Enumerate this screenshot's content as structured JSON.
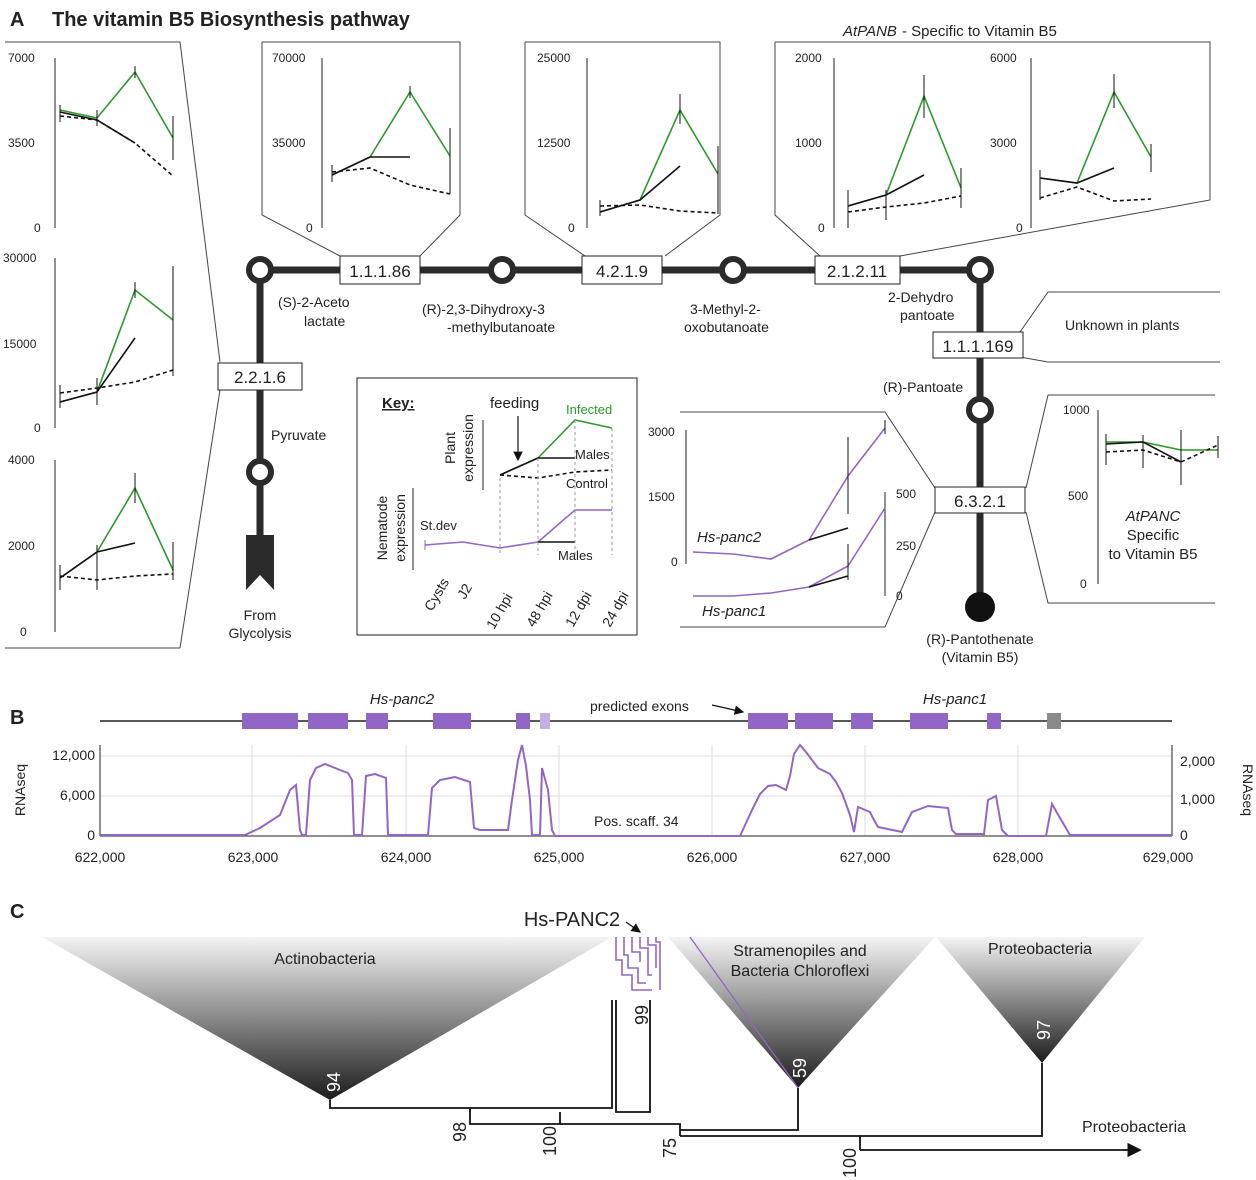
{
  "panels": {
    "a_letter": "A",
    "a_title": "The vitamin B5 Biosynthesis pathway",
    "b_letter": "B",
    "c_letter": "C"
  },
  "pathway": {
    "enzymes": [
      "1.1.1.86",
      "4.2.1.9",
      "2.1.2.11",
      "1.1.1.169",
      "2.2.1.6",
      "6.3.2.1"
    ],
    "compounds": {
      "acetolactate": [
        "(S)-2-Aceto",
        "lactate"
      ],
      "dihydroxy": [
        "(R)-2,3-Dihydroxy-3",
        "-methylbutanoate"
      ],
      "methyl_oxo": [
        "3-Methyl-2-",
        "oxobutanoate"
      ],
      "dehydro": [
        "2-Dehydro",
        "pantoate"
      ],
      "pantoate": "(R)-Pantoate",
      "pyruvate": "Pyruvate",
      "glycolysis": [
        "From",
        "Glycolysis"
      ],
      "pantothenate": [
        "(R)-Pantothenate",
        "(Vitamin B5)"
      ]
    },
    "unknown_plants": "Unknown in plants",
    "atpanb_italic": "AtPANB",
    "atpanb_rest": " - Specific to Vitamin B5",
    "atpanc": [
      "AtPANC",
      "Specific",
      "to Vitamin B5"
    ]
  },
  "key": {
    "title": "Key:",
    "feeding": "feeding",
    "infected": "Infected",
    "males": "Males",
    "control": "Control",
    "plant_expression": [
      "Plant",
      "expression"
    ],
    "nematode_expression": [
      "Nematode",
      "expression"
    ],
    "stdev": "St.dev",
    "males2": "Males",
    "stages": [
      "Cysts",
      "J2",
      "10 hpi",
      "48 hpi",
      "12 dpi",
      "24 dpi"
    ]
  },
  "mini_charts": {
    "left_top": {
      "ticks": [
        "7000",
        "3500",
        "0"
      ]
    },
    "left_mid": {
      "ticks": [
        "30000",
        "15000",
        "0"
      ]
    },
    "left_bot": {
      "ticks": [
        "4000",
        "2000",
        "0"
      ]
    },
    "top1": {
      "ticks": [
        "70000",
        "35000",
        "0"
      ]
    },
    "top2": {
      "ticks": [
        "25000",
        "12500",
        "0"
      ]
    },
    "top3": {
      "ticks": [
        "2000",
        "1000",
        "0"
      ]
    },
    "top4": {
      "ticks": [
        "6000",
        "3000",
        "0"
      ]
    },
    "right": {
      "ticks": [
        "1000",
        "500",
        "0"
      ]
    },
    "hs": {
      "ticks_left": [
        "3000",
        "1500",
        "0"
      ],
      "ticks_right": [
        "500",
        "250",
        "0"
      ],
      "label_panc2": "Hs-panc2",
      "label_panc1": "Hs-panc1"
    }
  },
  "panel_b": {
    "gene_panc2": "Hs-panc2",
    "gene_panc1": "Hs-panc1",
    "predicted_exons": "predicted exons",
    "y_left_label": "RNAseq",
    "y_right_label": "RNAseq",
    "y_left_ticks": [
      "12,000",
      "6,000",
      "0"
    ],
    "y_right_ticks": [
      "2,000",
      "1,000",
      "0"
    ],
    "x_ticks": [
      "622,000",
      "623,000",
      "624,000",
      "625,000",
      "626,000",
      "627,000",
      "628,000",
      "629,000"
    ],
    "scaffold": "Pos. scaff. 34"
  },
  "panel_c": {
    "hs_panc2": "Hs-PANC2",
    "clades": [
      "Actinobacteria",
      "Stramenopiles and",
      "Bacteria Chloroflexi",
      "Proteobacteria"
    ],
    "outgroup": "Proteobacteria",
    "bootstraps": [
      "94",
      "98",
      "99",
      "100",
      "59",
      "75",
      "97",
      "100"
    ]
  },
  "colors": {
    "infected": "#2a9a2a",
    "nematode": "#9266c6",
    "pathway": "#2b2b2b"
  }
}
